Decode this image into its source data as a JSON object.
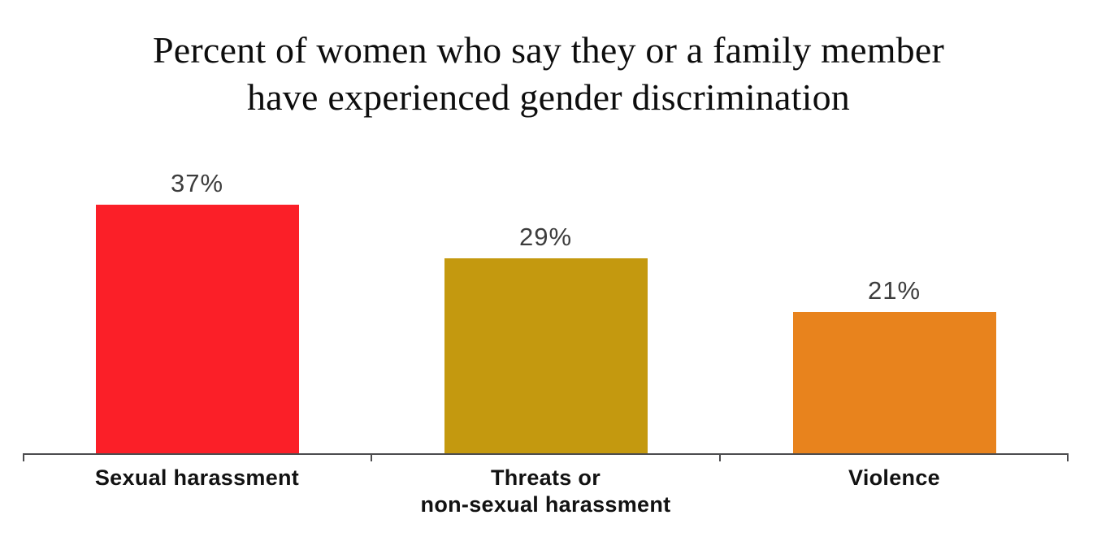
{
  "chart_data": {
    "type": "bar",
    "title": "Percent of women who say they or a family member have experienced gender discrimination",
    "title_lines": [
      "Percent of women who say they or a family member",
      "have experienced gender discrimination"
    ],
    "categories": [
      "Sexual harassment",
      "Threats or non-sexual harassment",
      "Violence"
    ],
    "category_label_lines": [
      [
        "Sexual harassment"
      ],
      [
        "Threats or",
        "non-sexual harassment"
      ],
      [
        "Violence"
      ]
    ],
    "values": [
      37,
      29,
      21
    ],
    "value_labels": [
      "37%",
      "29%",
      "21%"
    ],
    "unit": "%",
    "series_name": "Percent of women",
    "bar_colors": [
      "#fb1f28",
      "#c4990f",
      "#e8831d"
    ],
    "value_label_color": "#3d3d3d",
    "category_label_color": "#121212",
    "axis_color": "#4c4c4e",
    "title_color": "#0d0d0d",
    "background_color": "#ffffff",
    "ylim": [
      0,
      40
    ],
    "grid": false,
    "legend": false,
    "y_axis_visible": false,
    "value_labels_position": "above-bars"
  }
}
